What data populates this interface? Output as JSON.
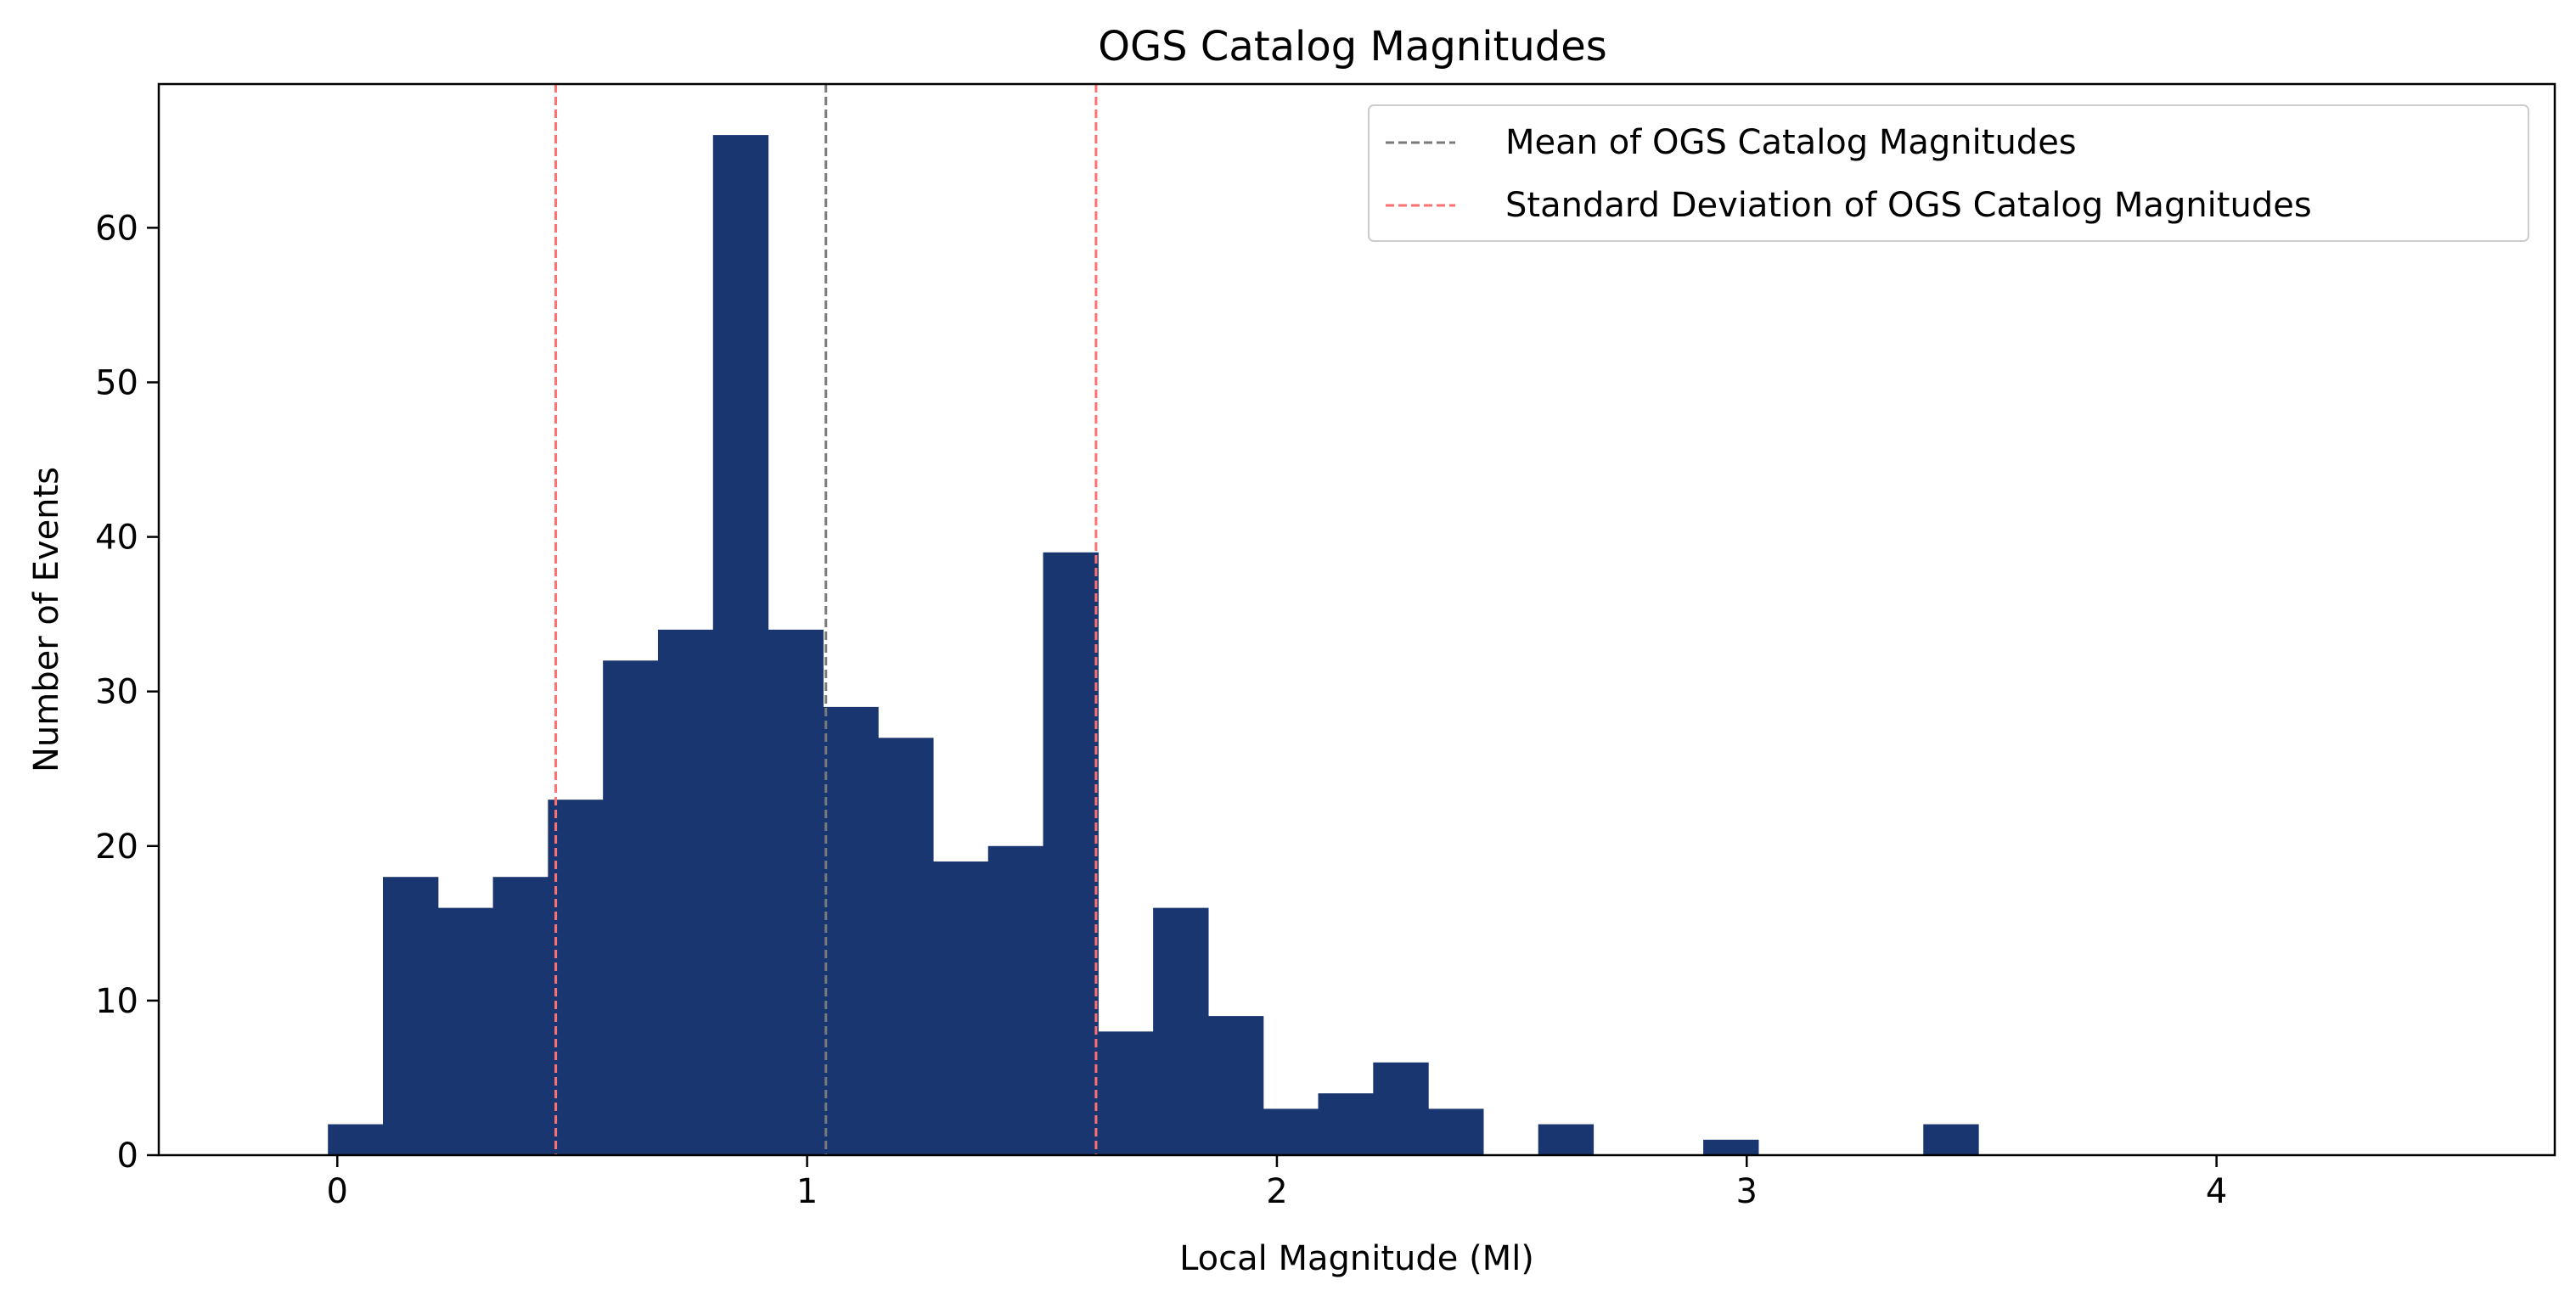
{
  "chart_data": {
    "type": "bar",
    "title": "OGS Catalog Magnitudes",
    "xlabel": "Local Magnitude (Ml)",
    "ylabel": "Number of Events",
    "xlim": [
      -0.38,
      4.72
    ],
    "ylim": [
      0,
      69.3
    ],
    "xticks": [
      0,
      1,
      2,
      3,
      4
    ],
    "yticks": [
      0,
      10,
      20,
      30,
      40,
      50,
      60
    ],
    "grid": false,
    "legend_position": "top-right",
    "bar_color": "#1a3670",
    "bin_edges": [
      -0.02,
      0.0971,
      0.2142,
      0.3313,
      0.4484,
      0.5655,
      0.6826,
      0.7997,
      0.9168,
      1.0339,
      1.151,
      1.2681,
      1.3852,
      1.5023,
      1.6194,
      1.7365,
      1.8536,
      1.9707,
      2.0878,
      2.2049,
      2.322,
      2.4391,
      2.5562,
      2.6733,
      2.7904,
      2.9075,
      3.0246,
      3.1417,
      3.2588,
      3.3759,
      3.493
    ],
    "counts": [
      2,
      18,
      16,
      18,
      23,
      32,
      34,
      66,
      34,
      29,
      27,
      19,
      20,
      39,
      8,
      16,
      9,
      3,
      4,
      6,
      3,
      0,
      2,
      0,
      0,
      1,
      0,
      0,
      0,
      2
    ],
    "reference_lines": [
      {
        "name": "Mean of OGS Catalog Magnitudes",
        "x": 1.04,
        "color": "#7a7a7a",
        "style": "dashed"
      },
      {
        "name": "Standard Deviation of OGS Catalog Magnitudes",
        "x": 0.465,
        "color": "#ff7070",
        "style": "dashed"
      },
      {
        "name": "Standard Deviation of OGS Catalog Magnitudes",
        "x": 1.615,
        "color": "#ff7070",
        "style": "dashed"
      }
    ],
    "legend": [
      {
        "label": "Mean of OGS Catalog Magnitudes",
        "color": "#7a7a7a"
      },
      {
        "label": "Standard Deviation of OGS Catalog Magnitudes",
        "color": "#ff7070"
      }
    ]
  }
}
